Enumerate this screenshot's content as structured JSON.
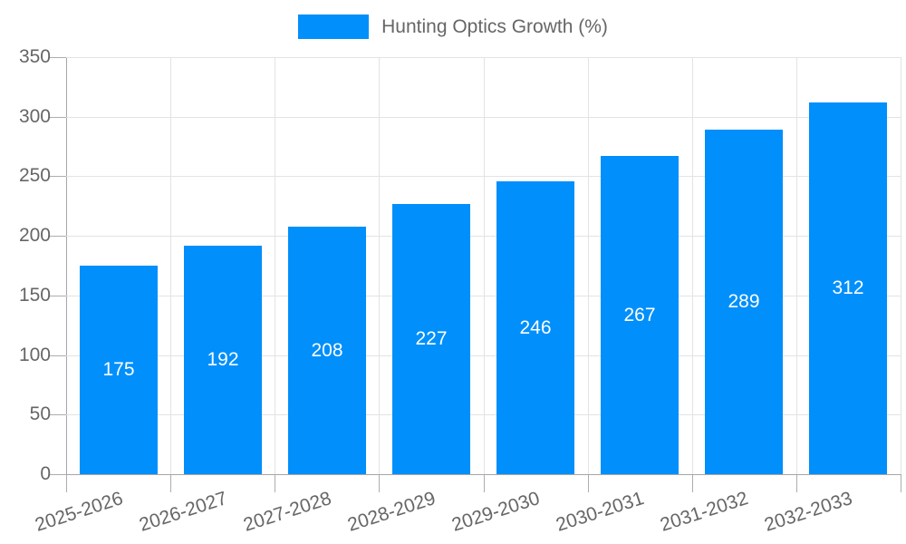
{
  "chart_data": {
    "type": "bar",
    "series": [
      {
        "name": "Hunting Optics Growth (%)",
        "values": [
          175,
          192,
          208,
          227,
          246,
          267,
          289,
          312
        ],
        "color": "#008FFB"
      }
    ],
    "categories": [
      "2025-2026",
      "2026-2027",
      "2027-2028",
      "2028-2029",
      "2029-2030",
      "2030-2031",
      "2031-2032",
      "2032-2033"
    ],
    "title": "",
    "xlabel": "",
    "ylabel": "",
    "ylim": [
      0,
      350
    ],
    "yticks": [
      0,
      50,
      100,
      150,
      200,
      250,
      300,
      350
    ],
    "grid": true,
    "legend_position": "top",
    "x_label_rotation_deg": -18,
    "value_labels": "inside-center",
    "colors": {
      "bar": "#008FFB",
      "value_label": "#FFFFFF",
      "axis_text": "#666666",
      "grid_line": "#E3E3E3",
      "axis_line": "#A6A6A6",
      "tick": "#ADADAD"
    }
  }
}
